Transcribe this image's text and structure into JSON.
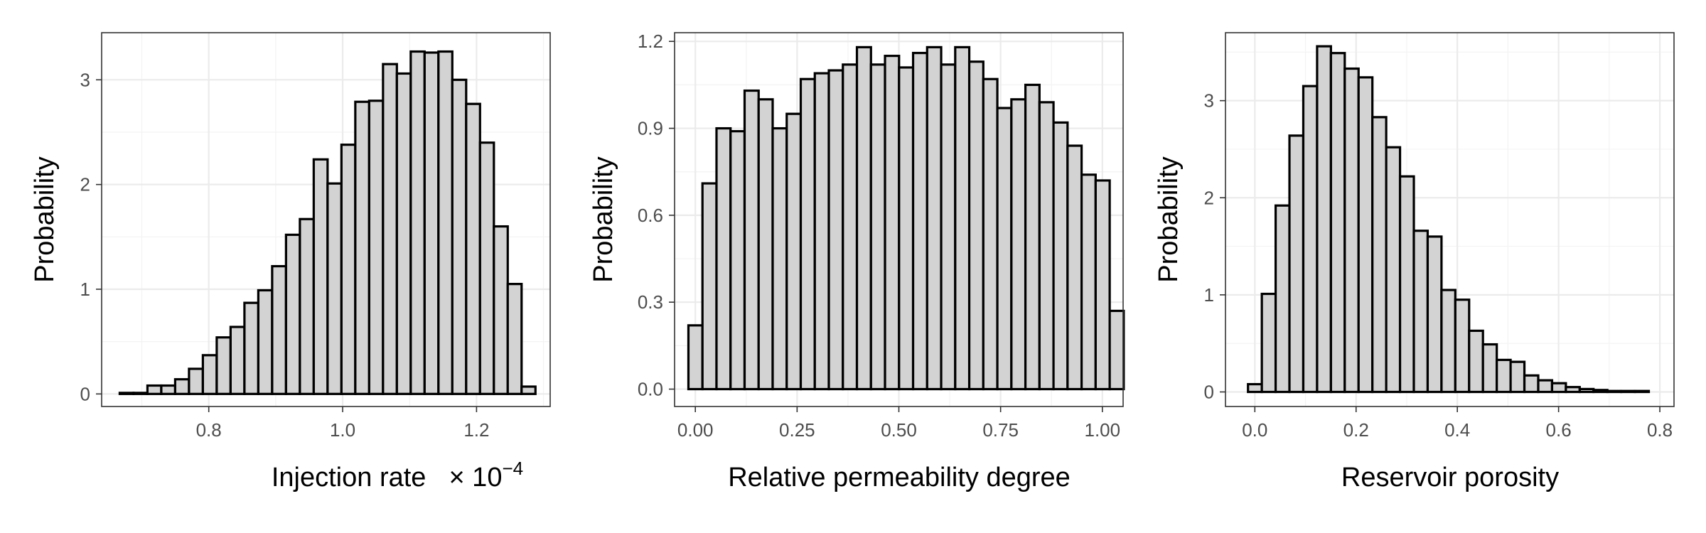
{
  "chart_data": [
    {
      "type": "bar",
      "title": "",
      "xlabel": "Injection rate",
      "xlabel_multiplier": "× 10",
      "xlabel_exponent": "−4",
      "ylabel": "Probability",
      "xlim": [
        0.64,
        1.31
      ],
      "ylim": [
        -0.12,
        3.45
      ],
      "xticks": [
        0.8,
        1.0,
        1.2
      ],
      "xtick_labels": [
        "0.8",
        "1.0",
        "1.2"
      ],
      "yticks": [
        0,
        1,
        2,
        3
      ],
      "ytick_labels": [
        "0",
        "1",
        "2",
        "3"
      ],
      "bin_start": 0.667,
      "bin_width": 0.0207,
      "values": [
        0.01,
        0.01,
        0.08,
        0.08,
        0.14,
        0.24,
        0.37,
        0.54,
        0.64,
        0.87,
        0.99,
        1.22,
        1.52,
        1.67,
        2.24,
        2.01,
        2.38,
        2.79,
        2.8,
        3.15,
        3.06,
        3.27,
        3.26,
        3.27,
        3.0,
        2.77,
        2.4,
        1.6,
        1.05,
        0.07
      ],
      "bar_fill": "#d3d3d3",
      "bar_edge": "#000000",
      "grid": true
    },
    {
      "type": "bar",
      "title": "",
      "xlabel": "Relative permeability degree",
      "ylabel": "Probability",
      "xlim": [
        -0.051,
        1.051
      ],
      "ylim": [
        -0.06,
        1.23
      ],
      "xticks": [
        0.0,
        0.25,
        0.5,
        0.75,
        1.0
      ],
      "xtick_labels": [
        "0.00",
        "0.25",
        "0.50",
        "0.75",
        "1.00"
      ],
      "yticks": [
        0.0,
        0.3,
        0.6,
        0.9,
        1.2
      ],
      "ytick_labels": [
        "0.0",
        "0.3",
        "0.6",
        "0.9",
        "1.2"
      ],
      "bin_start": -0.017,
      "bin_width": 0.0345,
      "values": [
        0.22,
        0.71,
        0.9,
        0.89,
        1.03,
        1.0,
        0.9,
        0.95,
        1.07,
        1.09,
        1.1,
        1.12,
        1.18,
        1.12,
        1.15,
        1.11,
        1.16,
        1.18,
        1.12,
        1.18,
        1.13,
        1.07,
        0.97,
        1.0,
        1.05,
        0.99,
        0.92,
        0.84,
        0.74,
        0.72,
        0.27
      ],
      "bar_fill": "#d3d3d3",
      "bar_edge": "#000000",
      "grid": true
    },
    {
      "type": "bar",
      "title": "",
      "xlabel": "Reservoir porosity",
      "ylabel": "Probability",
      "xlim": [
        -0.058,
        0.828
      ],
      "ylim": [
        -0.15,
        3.7
      ],
      "xticks": [
        0.0,
        0.2,
        0.4,
        0.6,
        0.8
      ],
      "xtick_labels": [
        "0.0",
        "0.2",
        "0.4",
        "0.6",
        "0.8"
      ],
      "yticks": [
        0,
        1,
        2,
        3
      ],
      "ytick_labels": [
        "0",
        "1",
        "2",
        "3"
      ],
      "bin_start": -0.0135,
      "bin_width": 0.0273,
      "values": [
        0.08,
        1.01,
        1.92,
        2.64,
        3.15,
        3.56,
        3.49,
        3.33,
        3.24,
        2.83,
        2.52,
        2.22,
        1.66,
        1.6,
        1.05,
        0.95,
        0.63,
        0.49,
        0.33,
        0.31,
        0.17,
        0.12,
        0.09,
        0.05,
        0.03,
        0.02,
        0.01,
        0.01,
        0.01
      ],
      "bar_fill": "#d3d3d3",
      "bar_edge": "#000000",
      "grid": true
    }
  ]
}
